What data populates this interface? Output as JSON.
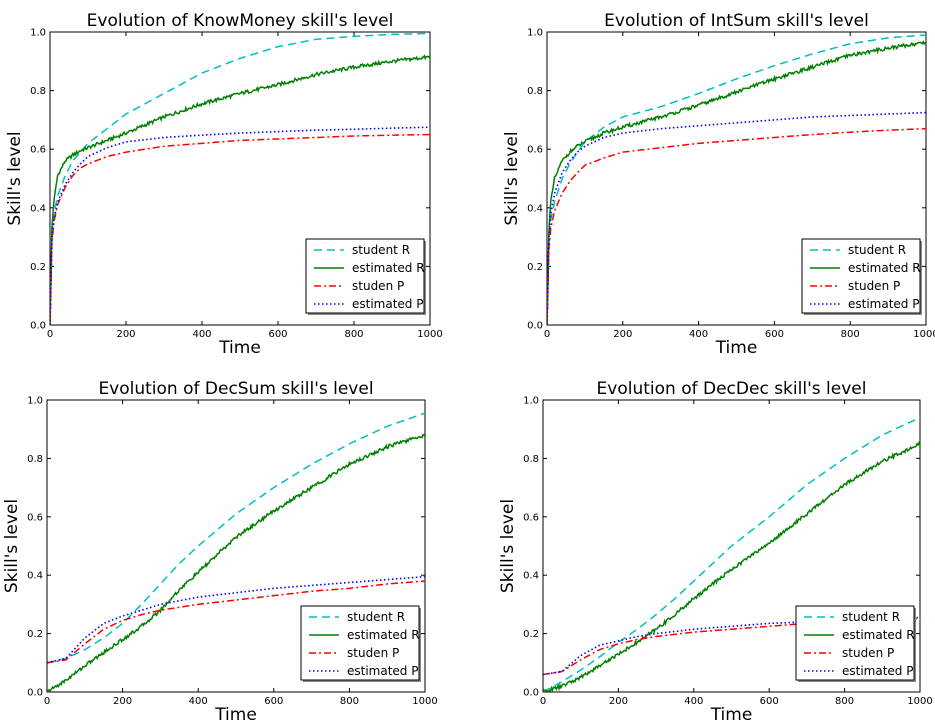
{
  "chart_data": [
    {
      "type": "line",
      "title": "Evolution of KnowMoney skill's level",
      "xlabel": "Time",
      "ylabel": "Skill's level",
      "xlim": [
        0,
        1000
      ],
      "ylim": [
        0.0,
        1.0
      ],
      "xticks": [
        "0",
        "200",
        "400",
        "600",
        "800",
        "1000"
      ],
      "yticks": [
        "0.0",
        "0.2",
        "0.4",
        "0.6",
        "0.8",
        "1.0"
      ],
      "legend_position": "lower-right",
      "series": [
        {
          "name": "student R",
          "color": "#00bfbf",
          "dash": "dashed",
          "x": [
            0,
            5,
            10,
            20,
            40,
            60,
            80,
            100,
            150,
            200,
            300,
            400,
            500,
            600,
            700,
            800,
            900,
            1000
          ],
          "y": [
            0.0,
            0.3,
            0.38,
            0.44,
            0.51,
            0.56,
            0.59,
            0.62,
            0.67,
            0.72,
            0.79,
            0.86,
            0.91,
            0.95,
            0.975,
            0.985,
            0.992,
            0.995
          ]
        },
        {
          "name": "estimated R",
          "color": "#008000",
          "dash": "solid",
          "x": [
            0,
            5,
            10,
            20,
            40,
            60,
            80,
            100,
            150,
            200,
            300,
            400,
            500,
            600,
            700,
            800,
            900,
            1000
          ],
          "y": [
            0.0,
            0.33,
            0.42,
            0.51,
            0.56,
            0.58,
            0.595,
            0.605,
            0.63,
            0.655,
            0.71,
            0.755,
            0.79,
            0.82,
            0.855,
            0.88,
            0.9,
            0.915
          ]
        },
        {
          "name": "studen P",
          "color": "#ff0000",
          "dash": "dashdot",
          "x": [
            0,
            5,
            10,
            20,
            40,
            60,
            80,
            100,
            150,
            200,
            300,
            400,
            500,
            600,
            700,
            800,
            900,
            1000
          ],
          "y": [
            0.0,
            0.28,
            0.35,
            0.41,
            0.47,
            0.51,
            0.535,
            0.55,
            0.575,
            0.59,
            0.61,
            0.62,
            0.63,
            0.635,
            0.64,
            0.645,
            0.648,
            0.65
          ]
        },
        {
          "name": "estimated P",
          "color": "#0000ff",
          "dash": "dotted",
          "x": [
            0,
            5,
            10,
            20,
            40,
            60,
            80,
            100,
            150,
            200,
            300,
            400,
            500,
            600,
            700,
            800,
            900,
            1000
          ],
          "y": [
            0.0,
            0.29,
            0.36,
            0.42,
            0.48,
            0.52,
            0.55,
            0.575,
            0.605,
            0.625,
            0.64,
            0.648,
            0.655,
            0.66,
            0.665,
            0.668,
            0.672,
            0.675
          ]
        }
      ]
    },
    {
      "type": "line",
      "title": "Evolution of IntSum skill's level",
      "xlabel": "Time",
      "ylabel": "Skill's level",
      "xlim": [
        0,
        1000
      ],
      "ylim": [
        0.0,
        1.0
      ],
      "xticks": [
        "0",
        "200",
        "400",
        "600",
        "800",
        "1000"
      ],
      "yticks": [
        "0.0",
        "0.2",
        "0.4",
        "0.6",
        "0.8",
        "1.0"
      ],
      "legend_position": "lower-right",
      "series": [
        {
          "name": "student R",
          "color": "#00bfbf",
          "dash": "dashed",
          "x": [
            0,
            5,
            10,
            20,
            40,
            60,
            80,
            100,
            150,
            200,
            300,
            400,
            500,
            600,
            700,
            800,
            900,
            1000
          ],
          "y": [
            0.0,
            0.28,
            0.36,
            0.42,
            0.5,
            0.55,
            0.59,
            0.625,
            0.675,
            0.71,
            0.745,
            0.79,
            0.84,
            0.885,
            0.925,
            0.96,
            0.98,
            0.99
          ]
        },
        {
          "name": "estimated R",
          "color": "#008000",
          "dash": "solid",
          "x": [
            0,
            5,
            10,
            20,
            40,
            60,
            80,
            100,
            150,
            200,
            300,
            400,
            500,
            600,
            700,
            800,
            900,
            1000
          ],
          "y": [
            0.0,
            0.32,
            0.42,
            0.5,
            0.56,
            0.59,
            0.61,
            0.625,
            0.655,
            0.675,
            0.71,
            0.75,
            0.795,
            0.84,
            0.88,
            0.92,
            0.945,
            0.965
          ]
        },
        {
          "name": "studen P",
          "color": "#ff0000",
          "dash": "dashdot",
          "x": [
            0,
            5,
            10,
            20,
            40,
            60,
            80,
            100,
            150,
            200,
            300,
            400,
            500,
            600,
            700,
            800,
            900,
            1000
          ],
          "y": [
            0.0,
            0.26,
            0.33,
            0.39,
            0.45,
            0.49,
            0.52,
            0.545,
            0.57,
            0.59,
            0.605,
            0.62,
            0.63,
            0.64,
            0.65,
            0.658,
            0.665,
            0.67
          ]
        },
        {
          "name": "estimated P",
          "color": "#0000ff",
          "dash": "dotted",
          "x": [
            0,
            5,
            10,
            20,
            40,
            60,
            80,
            100,
            150,
            200,
            300,
            400,
            500,
            600,
            700,
            800,
            900,
            1000
          ],
          "y": [
            0.0,
            0.3,
            0.38,
            0.45,
            0.52,
            0.56,
            0.59,
            0.61,
            0.64,
            0.655,
            0.67,
            0.68,
            0.69,
            0.7,
            0.71,
            0.715,
            0.72,
            0.725
          ]
        }
      ]
    },
    {
      "type": "line",
      "title": "Evolution of DecSum skill's level",
      "xlabel": "Time",
      "ylabel": "Skill's level",
      "xlim": [
        0,
        1000
      ],
      "ylim": [
        0.0,
        1.0
      ],
      "xticks": [
        "0",
        "200",
        "400",
        "600",
        "800",
        "1000"
      ],
      "yticks": [
        "0.0",
        "0.2",
        "0.4",
        "0.6",
        "0.8",
        "1.0"
      ],
      "legend_position": "lower-right",
      "series": [
        {
          "name": "student R",
          "color": "#00bfbf",
          "dash": "dashed",
          "x": [
            0,
            50,
            100,
            150,
            200,
            250,
            300,
            350,
            400,
            450,
            500,
            600,
            700,
            800,
            900,
            1000
          ],
          "y": [
            0.1,
            0.115,
            0.145,
            0.185,
            0.235,
            0.3,
            0.37,
            0.44,
            0.5,
            0.555,
            0.61,
            0.7,
            0.78,
            0.85,
            0.91,
            0.955
          ]
        },
        {
          "name": "estimated R",
          "color": "#008000",
          "dash": "solid",
          "x": [
            0,
            50,
            100,
            150,
            200,
            250,
            300,
            350,
            400,
            450,
            500,
            600,
            700,
            800,
            900,
            1000
          ],
          "y": [
            0.0,
            0.04,
            0.09,
            0.135,
            0.18,
            0.225,
            0.28,
            0.35,
            0.41,
            0.47,
            0.53,
            0.62,
            0.7,
            0.78,
            0.84,
            0.88
          ]
        },
        {
          "name": "studen P",
          "color": "#ff0000",
          "dash": "dashdot",
          "x": [
            0,
            50,
            100,
            150,
            200,
            250,
            300,
            400,
            500,
            600,
            700,
            800,
            900,
            1000
          ],
          "y": [
            0.1,
            0.11,
            0.165,
            0.215,
            0.245,
            0.265,
            0.28,
            0.3,
            0.315,
            0.33,
            0.345,
            0.355,
            0.37,
            0.38
          ]
        },
        {
          "name": "estimated P",
          "color": "#0000ff",
          "dash": "dotted",
          "x": [
            0,
            50,
            100,
            150,
            200,
            250,
            300,
            400,
            500,
            600,
            700,
            800,
            900,
            1000
          ],
          "y": [
            0.1,
            0.115,
            0.185,
            0.235,
            0.26,
            0.28,
            0.3,
            0.325,
            0.34,
            0.355,
            0.365,
            0.375,
            0.385,
            0.395
          ]
        }
      ]
    },
    {
      "type": "line",
      "title": "Evolution of DecDec skill's level",
      "xlabel": "Time",
      "ylabel": "Skill's level",
      "xlim": [
        0,
        1000
      ],
      "ylim": [
        0.0,
        1.0
      ],
      "xticks": [
        "0",
        "200",
        "400",
        "600",
        "800",
        "1000"
      ],
      "yticks": [
        "0.0",
        "0.2",
        "0.4",
        "0.6",
        "0.8",
        "1.0"
      ],
      "legend_position": "lower-right",
      "series": [
        {
          "name": "student R",
          "color": "#00bfbf",
          "dash": "dashed",
          "x": [
            0,
            50,
            100,
            150,
            200,
            250,
            300,
            350,
            400,
            450,
            500,
            600,
            700,
            800,
            900,
            1000
          ],
          "y": [
            0.0,
            0.035,
            0.075,
            0.12,
            0.17,
            0.215,
            0.265,
            0.32,
            0.38,
            0.44,
            0.5,
            0.6,
            0.71,
            0.8,
            0.88,
            0.94
          ]
        },
        {
          "name": "estimated R",
          "color": "#008000",
          "dash": "solid",
          "x": [
            0,
            50,
            100,
            150,
            200,
            250,
            300,
            350,
            400,
            450,
            500,
            600,
            700,
            800,
            900,
            1000
          ],
          "y": [
            0.0,
            0.02,
            0.05,
            0.09,
            0.13,
            0.17,
            0.215,
            0.265,
            0.32,
            0.37,
            0.42,
            0.51,
            0.61,
            0.71,
            0.79,
            0.85
          ]
        },
        {
          "name": "studen P",
          "color": "#ff0000",
          "dash": "dashdot",
          "x": [
            0,
            50,
            100,
            150,
            200,
            250,
            300,
            400,
            500,
            600,
            700,
            800,
            900,
            1000
          ],
          "y": [
            0.06,
            0.07,
            0.11,
            0.145,
            0.165,
            0.18,
            0.19,
            0.205,
            0.215,
            0.225,
            0.235,
            0.24,
            0.245,
            0.25
          ]
        },
        {
          "name": "estimated P",
          "color": "#0000ff",
          "dash": "dotted",
          "x": [
            0,
            50,
            100,
            150,
            200,
            250,
            300,
            400,
            500,
            600,
            700,
            800,
            900,
            1000
          ],
          "y": [
            0.06,
            0.07,
            0.125,
            0.16,
            0.175,
            0.19,
            0.2,
            0.215,
            0.225,
            0.235,
            0.24,
            0.245,
            0.25,
            0.255
          ]
        }
      ]
    }
  ]
}
